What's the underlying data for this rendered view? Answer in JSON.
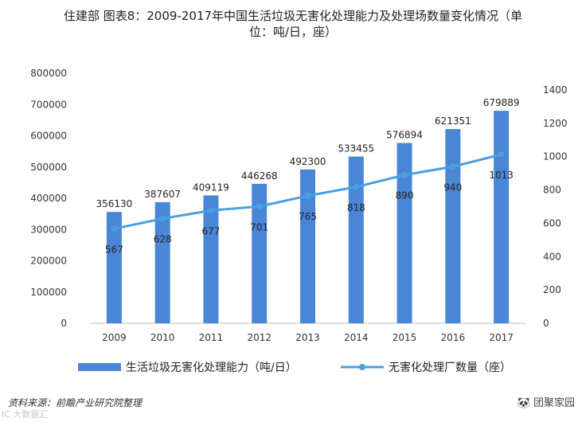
{
  "header": {
    "title_line1": "住建部  图表8：2009-2017年中国生活垃圾无害化处理能力及处理场数量变化情况（单",
    "title_line2": "位：吨/日，座）"
  },
  "footer": {
    "source": "资料来源：前瞻产业研究院整理",
    "brand": "🐼 团聚家园",
    "watermark": "IC  大数据汇"
  },
  "chart_data": {
    "type": "bar",
    "categories": [
      "2009",
      "2010",
      "2011",
      "2012",
      "2013",
      "2014",
      "2015",
      "2016",
      "2017"
    ],
    "series": [
      {
        "name": "生活垃圾无害化处理能力（吨/日）",
        "type": "bar",
        "axis": "left",
        "color": "#4a86d6",
        "values": [
          356130,
          387607,
          409119,
          446268,
          492300,
          533455,
          576894,
          621351,
          679889
        ],
        "labels": [
          "356130",
          "387607",
          "409119",
          "446268",
          "492300",
          "533455",
          "576894",
          "621351",
          "679889"
        ]
      },
      {
        "name": "无害化处理厂数量（座）",
        "type": "line",
        "axis": "right",
        "color": "#4a9fe0",
        "values": [
          567,
          628,
          677,
          701,
          765,
          818,
          890,
          940,
          1013
        ],
        "labels": [
          "567",
          "628",
          "677",
          "701",
          "765",
          "818",
          "890",
          "940",
          "1013"
        ]
      }
    ],
    "y_left": {
      "lim": [
        0,
        800000
      ],
      "ticks": [
        "0",
        "100000",
        "200000",
        "300000",
        "400000",
        "500000",
        "600000",
        "700000",
        "800000"
      ]
    },
    "y_right": {
      "lim": [
        0,
        1400
      ],
      "ticks": [
        "0",
        "200",
        "400",
        "600",
        "800",
        "1000",
        "1200",
        "1400"
      ]
    },
    "grid": false,
    "legend": "bottom"
  }
}
